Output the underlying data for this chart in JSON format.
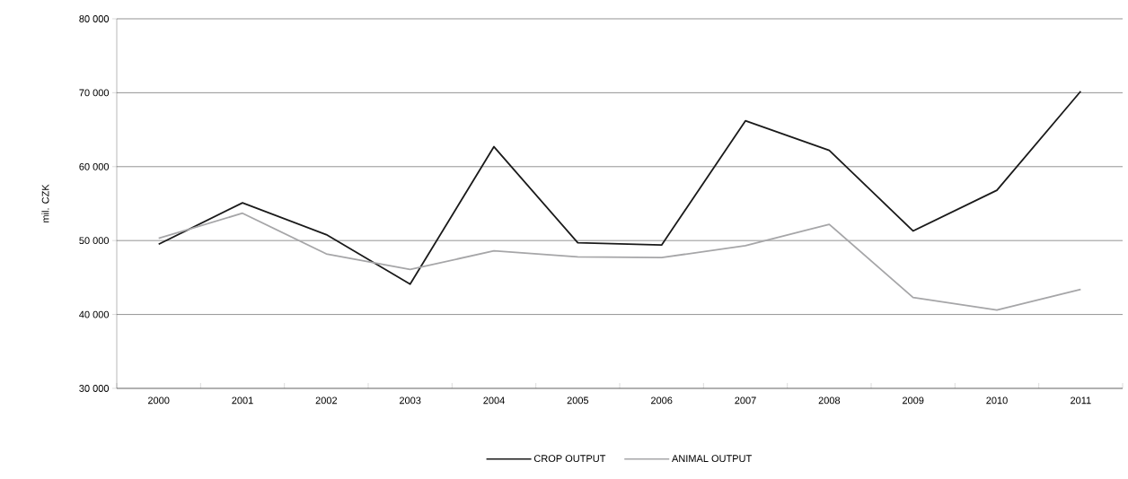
{
  "chart_data": {
    "type": "line",
    "ylabel": "mil. CZK",
    "categories": [
      "2000",
      "2001",
      "2002",
      "2003",
      "2004",
      "2005",
      "2006",
      "2007",
      "2008",
      "2009",
      "2010",
      "2011"
    ],
    "series": [
      {
        "name": "CROP OUTPUT",
        "color": "#1a1a1a",
        "values": [
          49500,
          55100,
          50800,
          44100,
          62700,
          49700,
          49400,
          66200,
          62200,
          51300,
          56800,
          70200
        ]
      },
      {
        "name": "ANIMAL OUTPUT",
        "color": "#a6a6a8",
        "values": [
          50300,
          53700,
          48200,
          46100,
          48600,
          47800,
          47700,
          49300,
          52200,
          42300,
          40600,
          43400
        ]
      }
    ],
    "ylim": [
      30000,
      80000
    ],
    "yticks": [
      {
        "value": 30000,
        "label": "30 000"
      },
      {
        "value": 40000,
        "label": "40 000"
      },
      {
        "value": 50000,
        "label": "50 000"
      },
      {
        "value": 60000,
        "label": "60 000"
      },
      {
        "value": 70000,
        "label": "70 000"
      },
      {
        "value": 80000,
        "label": "80 000"
      }
    ],
    "grid": "y",
    "legend": "bottom",
    "marker": "none",
    "line_style": "solid"
  }
}
